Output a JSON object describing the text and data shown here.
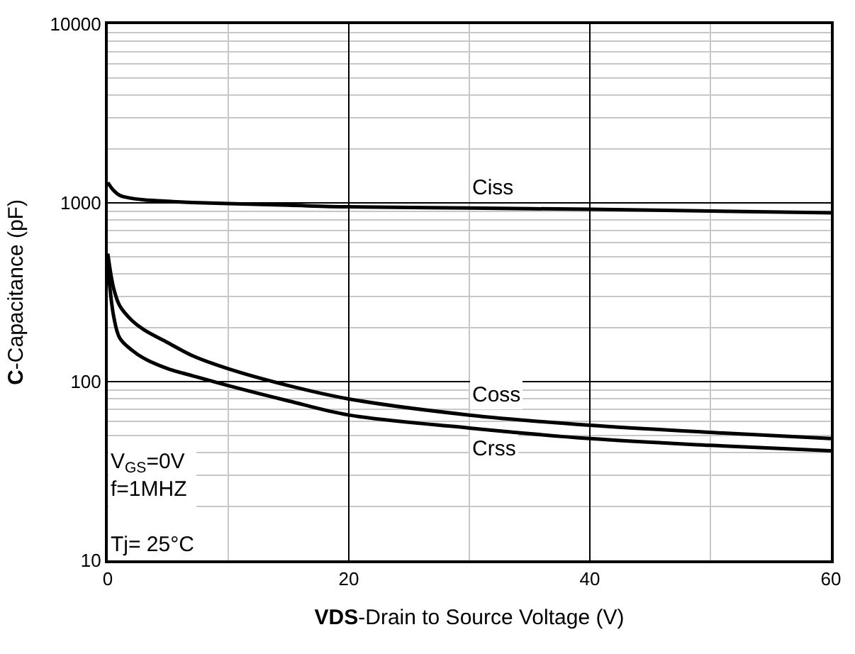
{
  "chart_data": {
    "type": "line",
    "xlabel": "VDS-Drain to Source Voltage (V)",
    "ylabel": "C-Capacitance (pF)",
    "x": [
      0,
      0.5,
      1,
      2,
      3,
      5,
      7,
      10,
      15,
      20,
      30,
      40,
      50,
      60
    ],
    "series": [
      {
        "name": "Ciss",
        "color": "#000000",
        "values": [
          1300,
          1170,
          1100,
          1060,
          1040,
          1020,
          1005,
          990,
          970,
          950,
          935,
          920,
          900,
          880
        ]
      },
      {
        "name": "Coss",
        "color": "#000000",
        "values": [
          520,
          330,
          265,
          220,
          195,
          165,
          140,
          118,
          95,
          80,
          65,
          57,
          52,
          48
        ]
      },
      {
        "name": "Crss",
        "color": "#000000",
        "values": [
          450,
          230,
          175,
          150,
          135,
          118,
          108,
          95,
          78,
          65,
          55,
          48,
          44,
          41
        ]
      }
    ],
    "xlim": [
      0,
      60
    ],
    "xticks": [
      0,
      20,
      40,
      60
    ],
    "ylim": [
      10,
      10000
    ],
    "yticks": [
      10,
      100,
      1000,
      10000
    ],
    "log": "y",
    "grid": true,
    "legend": false,
    "marker": "none",
    "line_style": "solid",
    "annotations": [
      "V$_{GS}$=0V\nf=1MHZ\n\nTj= 25°C"
    ]
  }
}
